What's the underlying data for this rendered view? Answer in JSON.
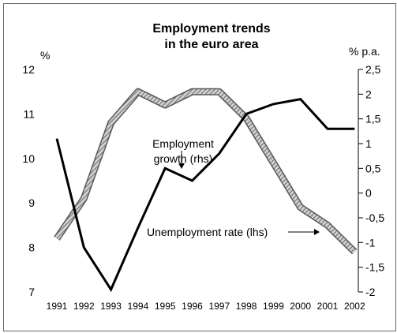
{
  "chart_data": {
    "type": "line",
    "title": "Employment trends",
    "subtitle": "in the euro area",
    "left_axis": {
      "unit": "%",
      "ylim": [
        7,
        12
      ],
      "ticks": [
        "12",
        "11",
        "10",
        "9",
        "8",
        "7"
      ]
    },
    "right_axis": {
      "unit": "% p.a.",
      "ylim": [
        -2,
        2.5
      ],
      "ticks": [
        "2,5",
        "2",
        "1,5",
        "1",
        "0,5",
        "0",
        "-0,5",
        "-1",
        "-1,5",
        "-2"
      ]
    },
    "categories": [
      "1991",
      "1992",
      "1993",
      "1994",
      "1995",
      "1996",
      "1997",
      "1998",
      "1999",
      "2000",
      "2001",
      "2002"
    ],
    "series": [
      {
        "name": "Unemployment rate (lhs)",
        "axis": "left",
        "style": "hatched-thick",
        "color": "#909090",
        "values": [
          8.2,
          9.1,
          10.8,
          11.5,
          11.2,
          11.5,
          11.5,
          10.9,
          9.9,
          8.9,
          8.5,
          7.9
        ]
      },
      {
        "name": "Employment growth (rhs)",
        "axis": "right",
        "style": "solid",
        "color": "#000000",
        "values": [
          1.1,
          -1.1,
          -1.95,
          -0.7,
          0.5,
          0.25,
          0.8,
          1.6,
          1.8,
          1.9,
          1.3,
          1.3
        ]
      }
    ],
    "annotations": [
      {
        "text_lines": [
          "Employment",
          "growth (rhs)"
        ],
        "series": "Employment growth (rhs)"
      },
      {
        "text": "Unemployment rate (lhs)",
        "series": "Unemployment rate (lhs)"
      }
    ],
    "grid": false
  }
}
